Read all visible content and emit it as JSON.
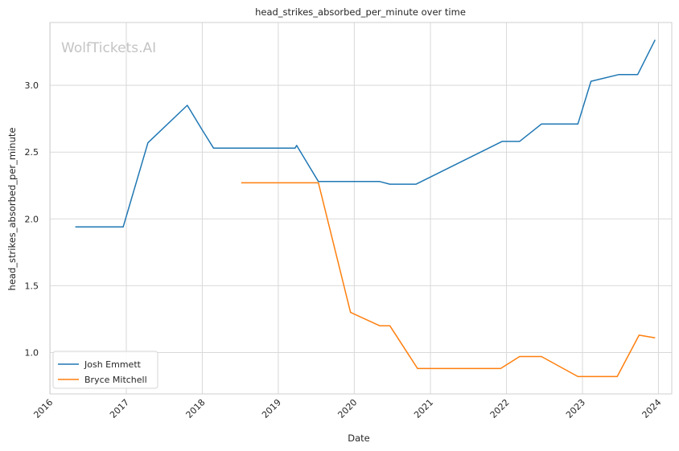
{
  "chart_data": {
    "type": "line",
    "title": "head_strikes_absorbed_per_minute over time",
    "xlabel": "Date",
    "ylabel": "head_strikes_absorbed_per_minute",
    "watermark": "WolfTickets.AI",
    "x_ticks": [
      "2016",
      "2017",
      "2018",
      "2019",
      "2020",
      "2021",
      "2022",
      "2023",
      "2024"
    ],
    "y_ticks": [
      "1.0",
      "1.5",
      "2.0",
      "2.5",
      "3.0"
    ],
    "xlim": [
      "2015-12-31",
      "2024-03-05"
    ],
    "ylim": [
      0.69,
      3.47
    ],
    "grid": true,
    "legend_position": "lower-left",
    "colors": {
      "Josh Emmett": "#1f77b4",
      "Bryce Mitchell": "#ff7f0e"
    },
    "series": [
      {
        "name": "Josh Emmett",
        "points": [
          [
            "2016-05-01",
            1.94
          ],
          [
            "2016-12-17",
            1.94
          ],
          [
            "2017-04-15",
            2.57
          ],
          [
            "2017-10-21",
            2.85
          ],
          [
            "2017-12-30",
            2.67
          ],
          [
            "2018-02-24",
            2.53
          ],
          [
            "2019-03-23",
            2.53
          ],
          [
            "2019-03-30",
            2.55
          ],
          [
            "2019-07-13",
            2.28
          ],
          [
            "2020-05-02",
            2.28
          ],
          [
            "2020-06-20",
            2.26
          ],
          [
            "2020-10-24",
            2.26
          ],
          [
            "2021-12-11",
            2.58
          ],
          [
            "2022-03-05",
            2.58
          ],
          [
            "2022-06-18",
            2.71
          ],
          [
            "2022-12-10",
            2.71
          ],
          [
            "2023-02-11",
            3.03
          ],
          [
            "2023-06-24",
            3.08
          ],
          [
            "2023-09-23",
            3.08
          ],
          [
            "2023-12-16",
            3.34
          ]
        ]
      },
      {
        "name": "Bryce Mitchell",
        "points": [
          [
            "2018-07-07",
            2.27
          ],
          [
            "2019-07-13",
            2.27
          ],
          [
            "2019-12-14",
            1.3
          ],
          [
            "2020-05-02",
            1.2
          ],
          [
            "2020-06-20",
            1.2
          ],
          [
            "2020-10-31",
            0.88
          ],
          [
            "2021-12-04",
            0.88
          ],
          [
            "2022-03-05",
            0.97
          ],
          [
            "2022-06-18",
            0.97
          ],
          [
            "2022-12-10",
            0.82
          ],
          [
            "2023-06-17",
            0.82
          ],
          [
            "2023-09-30",
            1.13
          ],
          [
            "2023-12-16",
            1.11
          ]
        ]
      }
    ]
  }
}
